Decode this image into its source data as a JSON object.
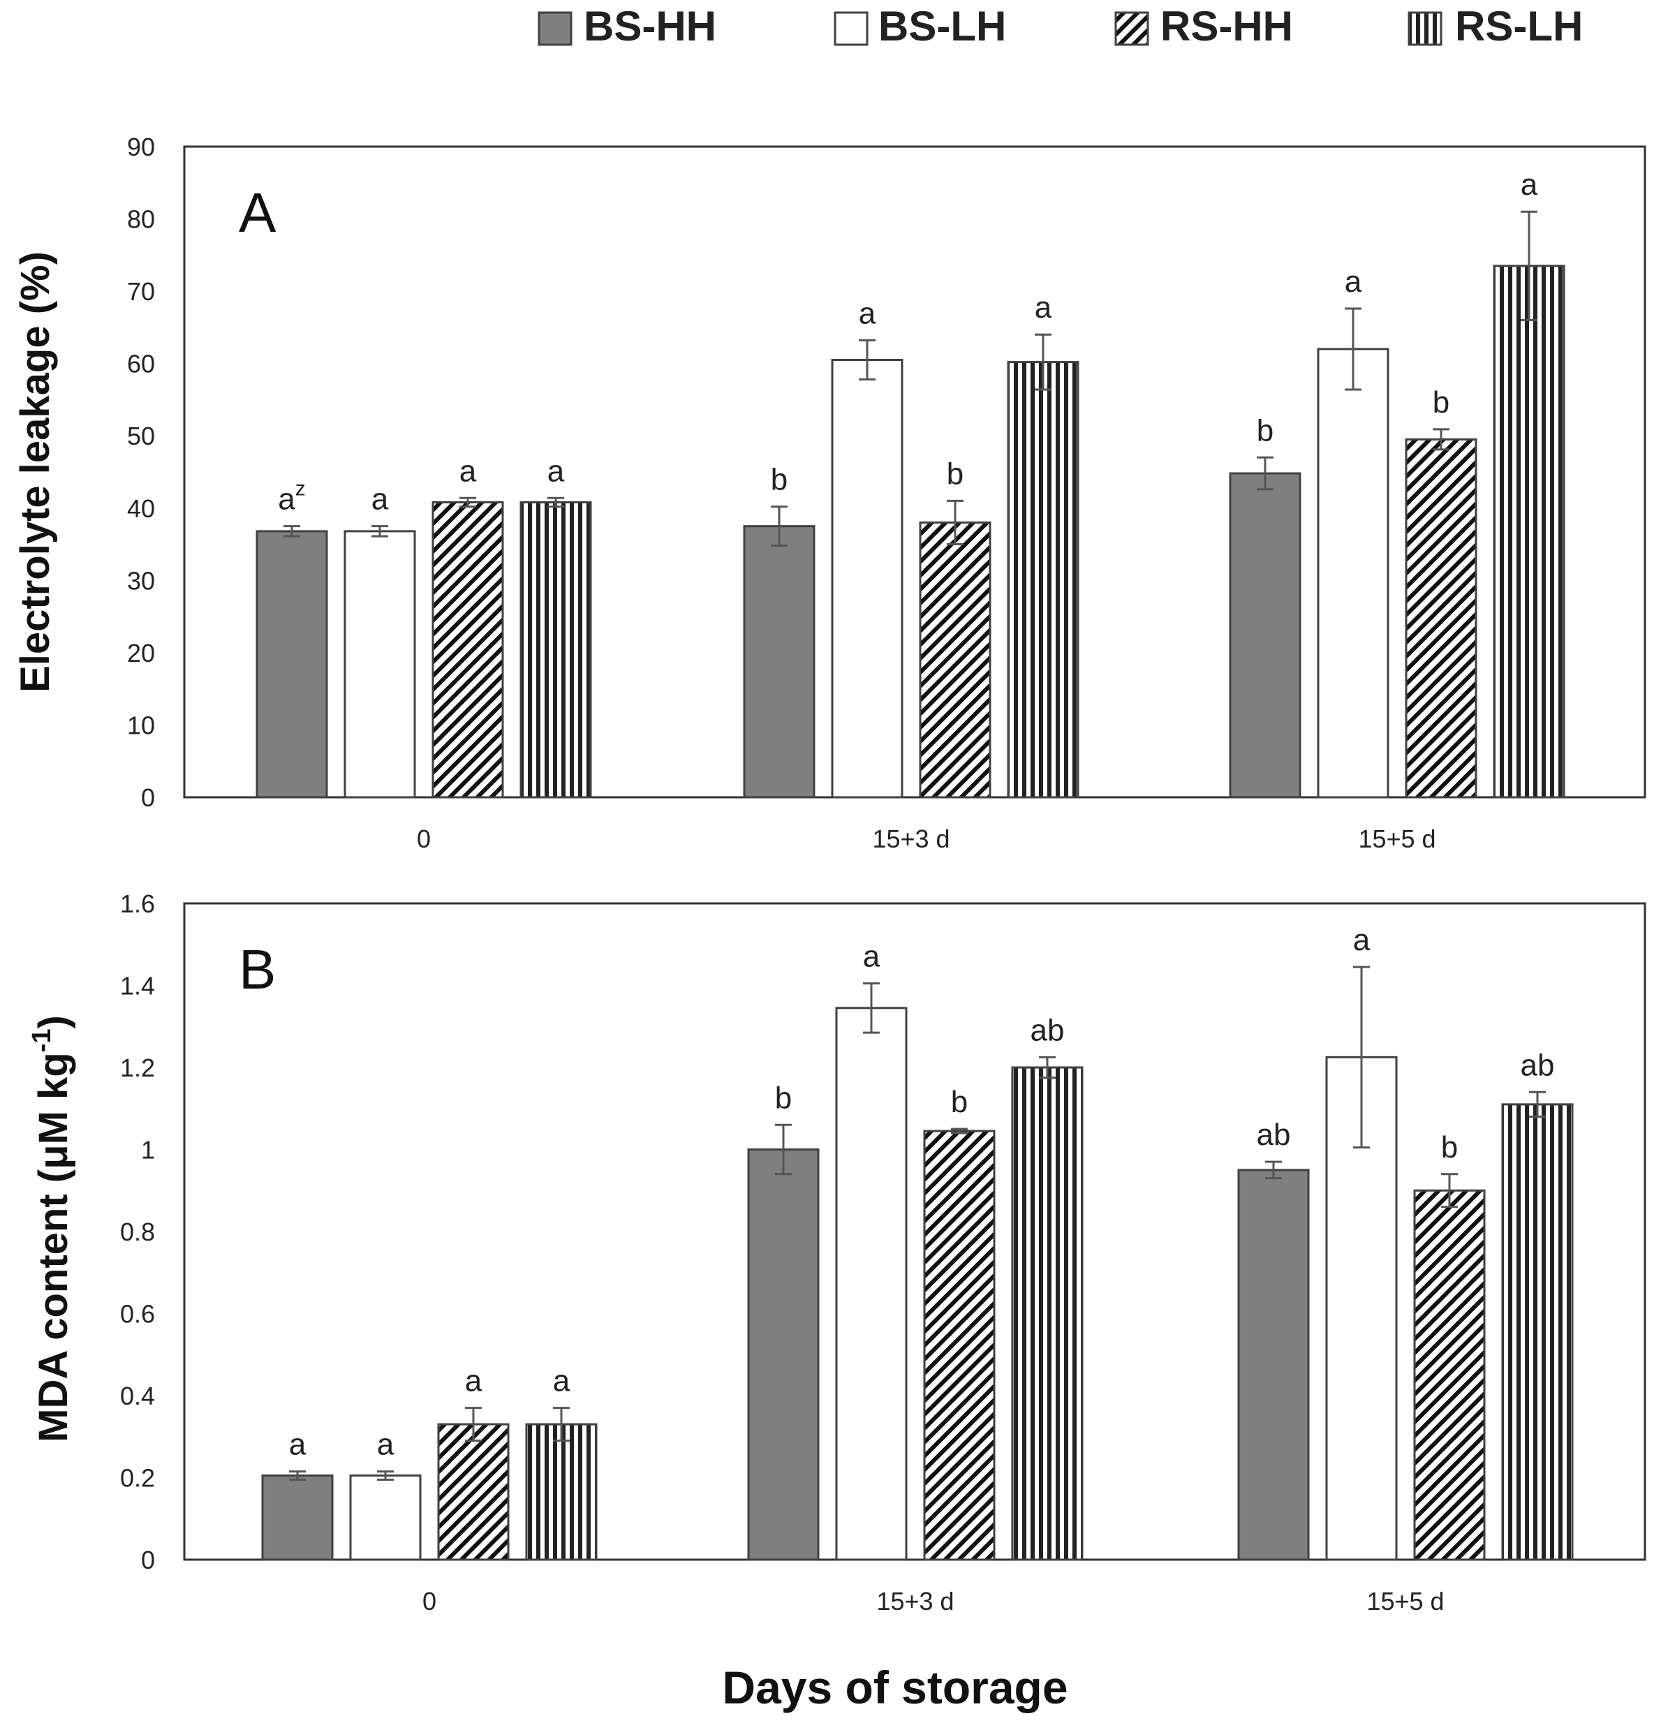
{
  "legend": [
    {
      "name": "BS-HH",
      "pattern": "solid"
    },
    {
      "name": "BS-LH",
      "pattern": "white"
    },
    {
      "name": "RS-HH",
      "pattern": "diagonal"
    },
    {
      "name": "RS-LH",
      "pattern": "vertical"
    }
  ],
  "xlabel": "Days of storage",
  "colors": {
    "dark_fill": "#7f7f7f",
    "outline": "#404040",
    "error_bar": "#555555",
    "axis": "#333333"
  },
  "chart_data": [
    {
      "type": "bar",
      "panel": "A",
      "ylabel": "Electrolyte leakage (%)",
      "ylim": [
        0,
        90
      ],
      "yticks": [
        "0",
        "10",
        "20",
        "30",
        "40",
        "50",
        "60",
        "70",
        "80",
        "90"
      ],
      "categories": [
        "0",
        "15+3 d",
        "15+5 d"
      ],
      "series": [
        {
          "name": "BS-HH",
          "values": [
            36.8,
            37.5,
            44.8
          ],
          "errors": [
            0.7,
            2.7,
            2.2
          ],
          "letters": [
            "a",
            "b",
            "b"
          ]
        },
        {
          "name": "BS-LH",
          "values": [
            36.8,
            60.5,
            62.0
          ],
          "errors": [
            0.7,
            2.7,
            5.6
          ],
          "letters": [
            "a",
            "a",
            "a"
          ]
        },
        {
          "name": "RS-HH",
          "values": [
            40.8,
            38.0,
            49.5
          ],
          "errors": [
            0.6,
            3.0,
            1.4
          ],
          "letters": [
            "a",
            "b",
            "b"
          ]
        },
        {
          "name": "RS-LH",
          "values": [
            40.8,
            60.2,
            73.5
          ],
          "errors": [
            0.6,
            3.8,
            7.5
          ],
          "letters": [
            "a",
            "a",
            "a"
          ]
        }
      ],
      "letter_superscript": {
        "series": 0,
        "category": 0,
        "text": "z"
      }
    },
    {
      "type": "bar",
      "panel": "B",
      "ylabel_main": "MDA content  (μM kg",
      "ylabel_sup": "-1",
      "ylabel_end": ")",
      "ylim": [
        0,
        1.6
      ],
      "yticks": [
        "0",
        "0.2",
        "0.4",
        "0.6",
        "0.8",
        "1",
        "1.2",
        "1.4",
        "1.6"
      ],
      "categories": [
        "0",
        "15+3 d",
        "15+5 d"
      ],
      "series": [
        {
          "name": "BS-HH",
          "values": [
            0.205,
            1.0,
            0.95
          ],
          "errors": [
            0.01,
            0.06,
            0.02
          ],
          "letters": [
            "a",
            "b",
            "ab"
          ]
        },
        {
          "name": "BS-LH",
          "values": [
            0.205,
            1.345,
            1.225
          ],
          "errors": [
            0.01,
            0.06,
            0.22
          ],
          "letters": [
            "a",
            "a",
            "a"
          ]
        },
        {
          "name": "RS-HH",
          "values": [
            0.33,
            1.045,
            0.9
          ],
          "errors": [
            0.04,
            0.005,
            0.04
          ],
          "letters": [
            "a",
            "b",
            "b"
          ]
        },
        {
          "name": "RS-LH",
          "values": [
            0.33,
            1.2,
            1.11
          ],
          "errors": [
            0.04,
            0.025,
            0.03
          ],
          "letters": [
            "a",
            "ab",
            "ab"
          ]
        }
      ]
    }
  ]
}
